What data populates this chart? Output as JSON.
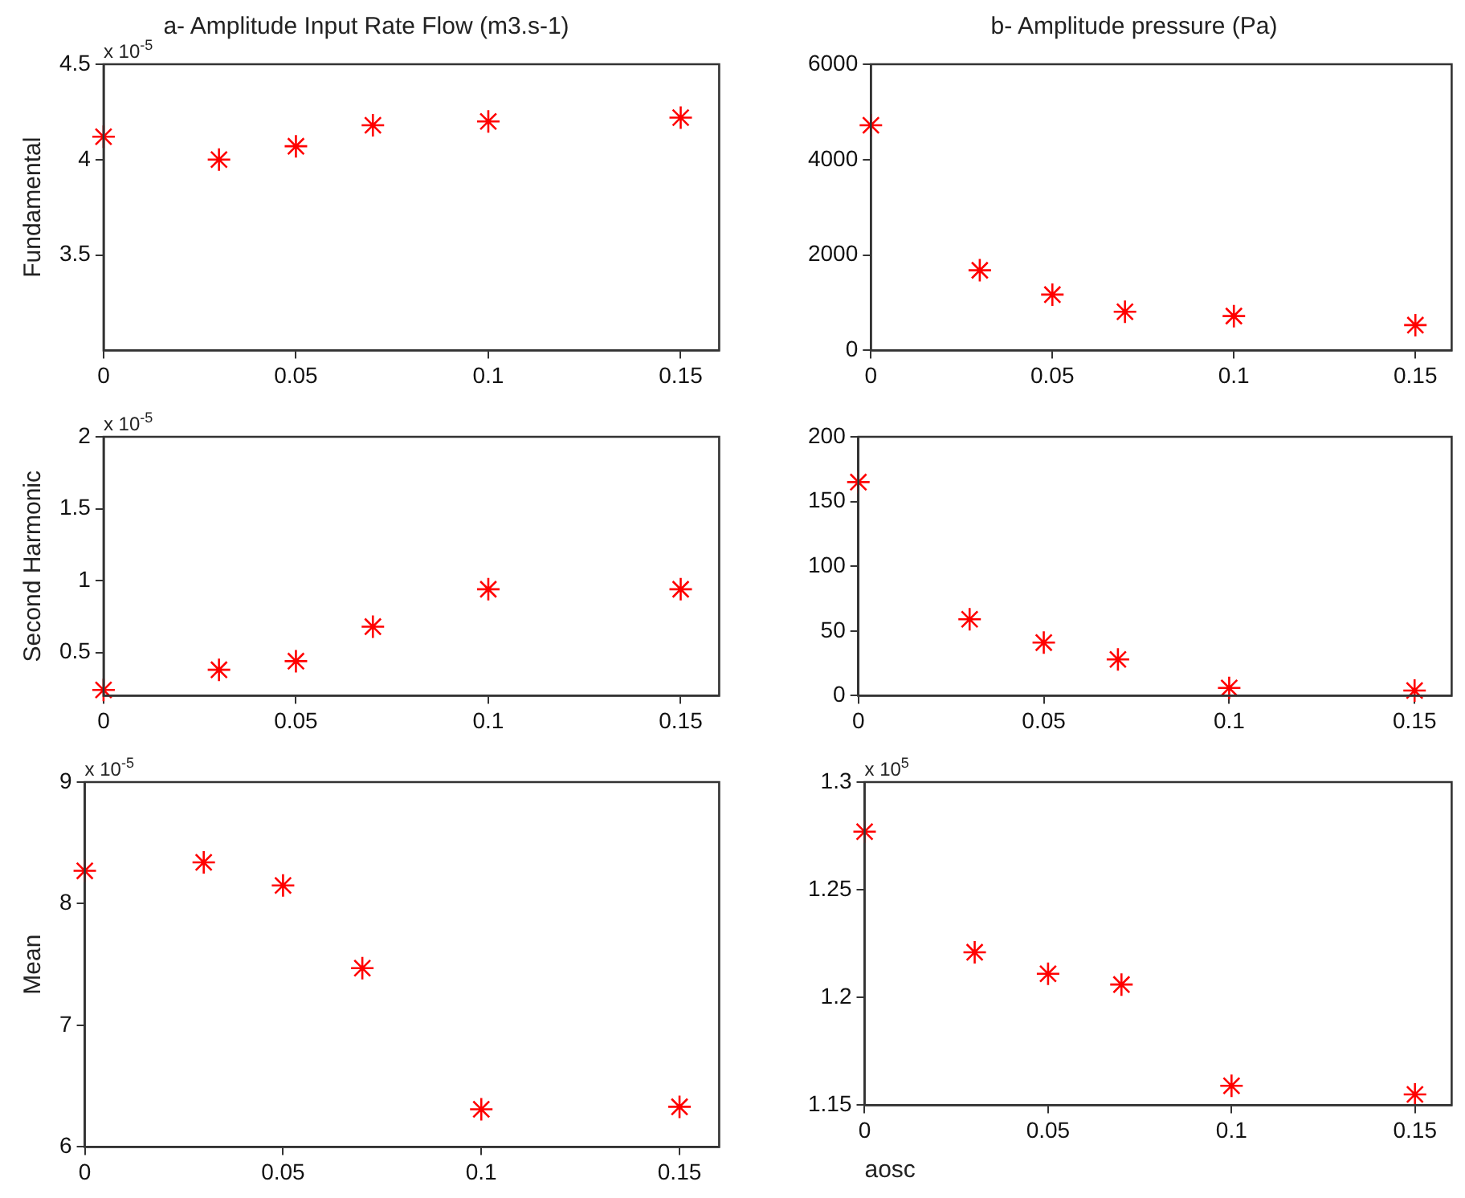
{
  "chart_data": [
    {
      "type": "scatter",
      "title": "a- Amplitude Input Rate Flow (m3.s-1)",
      "ylabel": "Fundamental",
      "annotations": [
        "x 10$^{-5}$"
      ],
      "x": [
        0,
        0.03,
        0.05,
        0.07,
        0.1,
        0.15
      ],
      "series": [
        {
          "color": "#ff0000",
          "values": [
            4.12,
            4.0,
            4.07,
            4.18,
            4.2,
            4.22
          ]
        }
      ],
      "xlim": [
        0,
        0.16
      ],
      "xticks": [
        0,
        0.05,
        0.1,
        0.15
      ],
      "ylim": [
        3,
        4.5
      ],
      "yticks": [
        3.5,
        4,
        4.5
      ],
      "marker": "cross",
      "grid": false,
      "legend": false
    },
    {
      "type": "scatter",
      "title": "b- Amplitude pressure (Pa)",
      "x": [
        0,
        0.03,
        0.05,
        0.07,
        0.1,
        0.15
      ],
      "series": [
        {
          "color": "#ff0000",
          "values": [
            4720,
            1680,
            1170,
            810,
            720,
            530
          ]
        }
      ],
      "xlim": [
        0,
        0.16
      ],
      "xticks": [
        0,
        0.05,
        0.1,
        0.15
      ],
      "ylim": [
        0,
        6000
      ],
      "yticks": [
        0,
        2000,
        4000,
        6000
      ],
      "marker": "cross",
      "grid": false,
      "legend": false
    },
    {
      "type": "scatter",
      "ylabel": "Second Harmonic",
      "annotations": [
        "x 10$^{-5}$"
      ],
      "x": [
        0,
        0.03,
        0.05,
        0.07,
        0.1,
        0.15
      ],
      "series": [
        {
          "color": "#ff0000",
          "values": [
            0.24,
            0.38,
            0.44,
            0.68,
            0.94,
            0.94
          ]
        }
      ],
      "xlim": [
        0,
        0.16
      ],
      "xticks": [
        0,
        0.05,
        0.1,
        0.15
      ],
      "ylim": [
        0.2,
        2
      ],
      "yticks": [
        0.5,
        1,
        1.5,
        2
      ],
      "marker": "cross",
      "grid": false,
      "legend": false
    },
    {
      "type": "scatter",
      "x": [
        0,
        0.03,
        0.05,
        0.07,
        0.1,
        0.15
      ],
      "series": [
        {
          "color": "#ff0000",
          "values": [
            165,
            59,
            41,
            28,
            6,
            4
          ]
        }
      ],
      "xlim": [
        0,
        0.16
      ],
      "xticks": [
        0,
        0.05,
        0.1,
        0.15
      ],
      "ylim": [
        0,
        200
      ],
      "yticks": [
        0,
        50,
        100,
        150,
        200
      ],
      "marker": "cross",
      "grid": false,
      "legend": false
    },
    {
      "type": "scatter",
      "ylabel": "Mean",
      "annotations": [
        "x 10$^{-5}$"
      ],
      "x": [
        0,
        0.03,
        0.05,
        0.07,
        0.1,
        0.15
      ],
      "series": [
        {
          "color": "#ff0000",
          "values": [
            8.27,
            8.34,
            8.15,
            7.47,
            6.31,
            6.33
          ]
        }
      ],
      "xlim": [
        0,
        0.16
      ],
      "xticks": [
        0,
        0.05,
        0.1,
        0.15
      ],
      "ylim": [
        6,
        9
      ],
      "yticks": [
        6,
        7,
        8,
        9
      ],
      "marker": "cross",
      "grid": false,
      "legend": false
    },
    {
      "type": "scatter",
      "xlabel": "aosc",
      "annotations": [
        "x 10$^{5}$"
      ],
      "x": [
        0,
        0.03,
        0.05,
        0.07,
        0.1,
        0.15
      ],
      "series": [
        {
          "color": "#ff0000",
          "values": [
            1.277,
            1.221,
            1.211,
            1.206,
            1.159,
            1.155
          ]
        }
      ],
      "xlim": [
        0,
        0.16
      ],
      "xticks": [
        0,
        0.05,
        0.1,
        0.15
      ],
      "ylim": [
        1.15,
        1.3
      ],
      "yticks": [
        1.15,
        1.2,
        1.25,
        1.3
      ],
      "marker": "cross",
      "grid": false,
      "legend": false
    }
  ]
}
